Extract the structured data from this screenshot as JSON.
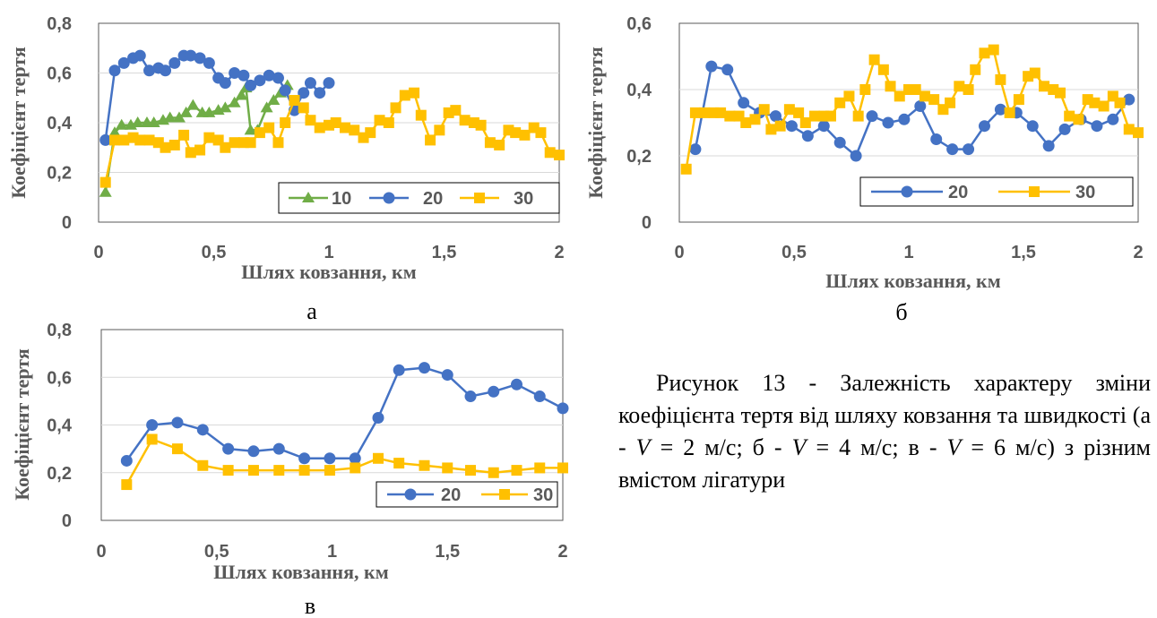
{
  "colors": {
    "s10": "#70AD47",
    "s20": "#4472C4",
    "s30": "#FFC000",
    "axis": "#595959",
    "grid": "#D9D9D9"
  },
  "caption": {
    "p1": "Рисунок 13 - Залежність характеру зміни коефіцієнта тертя від шляху ковзання та швидкості (а - ",
    "v": "V",
    "p2": " = 2 м/с; б - ",
    "p3": " = 4 м/с; в - ",
    "p4": " = 6 м/с) з різним вмістом лігатури"
  },
  "chart_data": [
    {
      "panel_label": "а",
      "type": "line",
      "xlabel": "Шлях ковзання, км",
      "ylabel": "Коефіцієнт тертя",
      "xlim": [
        0,
        2
      ],
      "ylim": [
        0,
        0.8
      ],
      "xticks": [
        "0",
        "0,5",
        "1",
        "1,5",
        "2"
      ],
      "yticks": [
        "0",
        "0,2",
        "0,4",
        "0,6",
        "0,8"
      ],
      "grid": true,
      "legend": "bottom-right",
      "series": [
        {
          "name": "10",
          "marker": "triangle",
          "x": [
            0.03,
            0.07,
            0.1,
            0.14,
            0.17,
            0.21,
            0.24,
            0.28,
            0.31,
            0.35,
            0.38,
            0.41,
            0.45,
            0.48,
            0.52,
            0.55,
            0.59,
            0.62,
            0.64,
            0.66,
            0.69,
            0.73,
            0.76,
            0.79,
            0.82
          ],
          "y": [
            0.12,
            0.36,
            0.39,
            0.39,
            0.4,
            0.4,
            0.4,
            0.41,
            0.42,
            0.42,
            0.44,
            0.47,
            0.44,
            0.44,
            0.45,
            0.46,
            0.48,
            0.51,
            0.54,
            0.37,
            0.37,
            0.46,
            0.49,
            0.52,
            0.55
          ]
        },
        {
          "name": "20",
          "marker": "circle",
          "x": [
            0.03,
            0.07,
            0.11,
            0.15,
            0.18,
            0.22,
            0.26,
            0.29,
            0.33,
            0.37,
            0.4,
            0.44,
            0.48,
            0.52,
            0.55,
            0.59,
            0.63,
            0.66,
            0.7,
            0.74,
            0.78,
            0.81,
            0.85,
            0.89,
            0.92,
            0.96,
            1.0
          ],
          "y": [
            0.33,
            0.61,
            0.64,
            0.66,
            0.67,
            0.61,
            0.62,
            0.61,
            0.64,
            0.67,
            0.67,
            0.66,
            0.64,
            0.58,
            0.56,
            0.6,
            0.59,
            0.55,
            0.57,
            0.59,
            0.58,
            0.53,
            0.45,
            0.52,
            0.56,
            0.52,
            0.56
          ]
        },
        {
          "name": "30",
          "marker": "square",
          "x": [
            0.03,
            0.07,
            0.11,
            0.15,
            0.18,
            0.22,
            0.26,
            0.29,
            0.33,
            0.37,
            0.4,
            0.44,
            0.48,
            0.52,
            0.55,
            0.59,
            0.63,
            0.66,
            0.7,
            0.74,
            0.78,
            0.81,
            0.85,
            0.89,
            0.92,
            0.96,
            1.0,
            1.03,
            1.07,
            1.11,
            1.15,
            1.18,
            1.22,
            1.26,
            1.29,
            1.33,
            1.37,
            1.4,
            1.44,
            1.48,
            1.52,
            1.55,
            1.59,
            1.63,
            1.66,
            1.7,
            1.74,
            1.78,
            1.81,
            1.85,
            1.89,
            1.92,
            1.96,
            2.0
          ],
          "y": [
            0.16,
            0.33,
            0.33,
            0.34,
            0.33,
            0.33,
            0.32,
            0.3,
            0.31,
            0.35,
            0.28,
            0.29,
            0.34,
            0.33,
            0.3,
            0.32,
            0.32,
            0.32,
            0.36,
            0.38,
            0.32,
            0.4,
            0.49,
            0.46,
            0.41,
            0.38,
            0.39,
            0.4,
            0.38,
            0.37,
            0.34,
            0.36,
            0.41,
            0.4,
            0.46,
            0.51,
            0.52,
            0.43,
            0.33,
            0.37,
            0.44,
            0.45,
            0.41,
            0.4,
            0.39,
            0.32,
            0.31,
            0.37,
            0.36,
            0.35,
            0.38,
            0.36,
            0.28,
            0.27
          ]
        }
      ]
    },
    {
      "panel_label": "б",
      "type": "line",
      "xlabel": "Шлях ковзання, км",
      "ylabel": "Коефіцієнт тертя",
      "xlim": [
        0,
        2
      ],
      "ylim": [
        0,
        0.6
      ],
      "xticks": [
        "0",
        "0,5",
        "1",
        "1,5",
        "2"
      ],
      "yticks": [
        "0",
        "0,2",
        "0,4",
        "0,6"
      ],
      "grid": true,
      "legend": "bottom-right",
      "series": [
        {
          "name": "20",
          "marker": "circle",
          "x": [
            0.07,
            0.14,
            0.21,
            0.28,
            0.35,
            0.42,
            0.49,
            0.56,
            0.63,
            0.7,
            0.77,
            0.84,
            0.91,
            0.98,
            1.05,
            1.12,
            1.19,
            1.26,
            1.33,
            1.4,
            1.47,
            1.54,
            1.61,
            1.68,
            1.75,
            1.82,
            1.89,
            1.96
          ],
          "y": [
            0.22,
            0.47,
            0.46,
            0.36,
            0.33,
            0.32,
            0.29,
            0.26,
            0.29,
            0.24,
            0.2,
            0.32,
            0.3,
            0.31,
            0.35,
            0.25,
            0.22,
            0.22,
            0.29,
            0.34,
            0.33,
            0.29,
            0.23,
            0.28,
            0.31,
            0.29,
            0.31,
            0.37
          ]
        },
        {
          "name": "30",
          "marker": "square",
          "x": [
            0.03,
            0.07,
            0.11,
            0.15,
            0.18,
            0.22,
            0.26,
            0.29,
            0.33,
            0.37,
            0.4,
            0.44,
            0.48,
            0.52,
            0.55,
            0.59,
            0.63,
            0.66,
            0.7,
            0.74,
            0.78,
            0.81,
            0.85,
            0.89,
            0.92,
            0.96,
            1.0,
            1.03,
            1.07,
            1.11,
            1.15,
            1.18,
            1.22,
            1.26,
            1.29,
            1.33,
            1.37,
            1.4,
            1.44,
            1.48,
            1.52,
            1.55,
            1.59,
            1.63,
            1.66,
            1.7,
            1.74,
            1.78,
            1.81,
            1.85,
            1.89,
            1.92,
            1.96,
            2.0
          ],
          "y": [
            0.16,
            0.33,
            0.33,
            0.33,
            0.33,
            0.32,
            0.32,
            0.3,
            0.31,
            0.34,
            0.28,
            0.29,
            0.34,
            0.33,
            0.3,
            0.32,
            0.32,
            0.32,
            0.36,
            0.38,
            0.32,
            0.4,
            0.49,
            0.46,
            0.41,
            0.38,
            0.4,
            0.4,
            0.38,
            0.37,
            0.34,
            0.36,
            0.41,
            0.4,
            0.46,
            0.51,
            0.52,
            0.43,
            0.33,
            0.37,
            0.44,
            0.45,
            0.41,
            0.4,
            0.39,
            0.32,
            0.31,
            0.37,
            0.36,
            0.35,
            0.38,
            0.36,
            0.28,
            0.27
          ]
        }
      ]
    },
    {
      "panel_label": "в",
      "type": "line",
      "xlabel": "Шлях ковзання, км",
      "ylabel": "Коефіцієнт тертя",
      "xlim": [
        0,
        2
      ],
      "ylim": [
        0,
        0.8
      ],
      "xticks": [
        "0",
        "0,5",
        "1",
        "1,5",
        "2"
      ],
      "yticks": [
        "0",
        "0,2",
        "0,4",
        "0,6",
        "0,8"
      ],
      "grid": true,
      "legend": "bottom-right",
      "series": [
        {
          "name": "20",
          "marker": "circle",
          "x": [
            0.11,
            0.22,
            0.33,
            0.44,
            0.55,
            0.66,
            0.77,
            0.88,
            0.99,
            1.1,
            1.2,
            1.29,
            1.4,
            1.5,
            1.6,
            1.7,
            1.8,
            1.9,
            2.0
          ],
          "y": [
            0.25,
            0.4,
            0.41,
            0.38,
            0.3,
            0.29,
            0.3,
            0.26,
            0.26,
            0.26,
            0.43,
            0.63,
            0.64,
            0.61,
            0.52,
            0.54,
            0.57,
            0.52,
            0.47
          ]
        },
        {
          "name": "30",
          "marker": "square",
          "x": [
            0.11,
            0.22,
            0.33,
            0.44,
            0.55,
            0.66,
            0.77,
            0.88,
            0.99,
            1.1,
            1.2,
            1.29,
            1.4,
            1.5,
            1.6,
            1.7,
            1.8,
            1.9,
            2.0
          ],
          "y": [
            0.15,
            0.34,
            0.3,
            0.23,
            0.21,
            0.21,
            0.21,
            0.21,
            0.21,
            0.22,
            0.26,
            0.24,
            0.23,
            0.22,
            0.21,
            0.2,
            0.21,
            0.22,
            0.22
          ]
        }
      ]
    }
  ]
}
